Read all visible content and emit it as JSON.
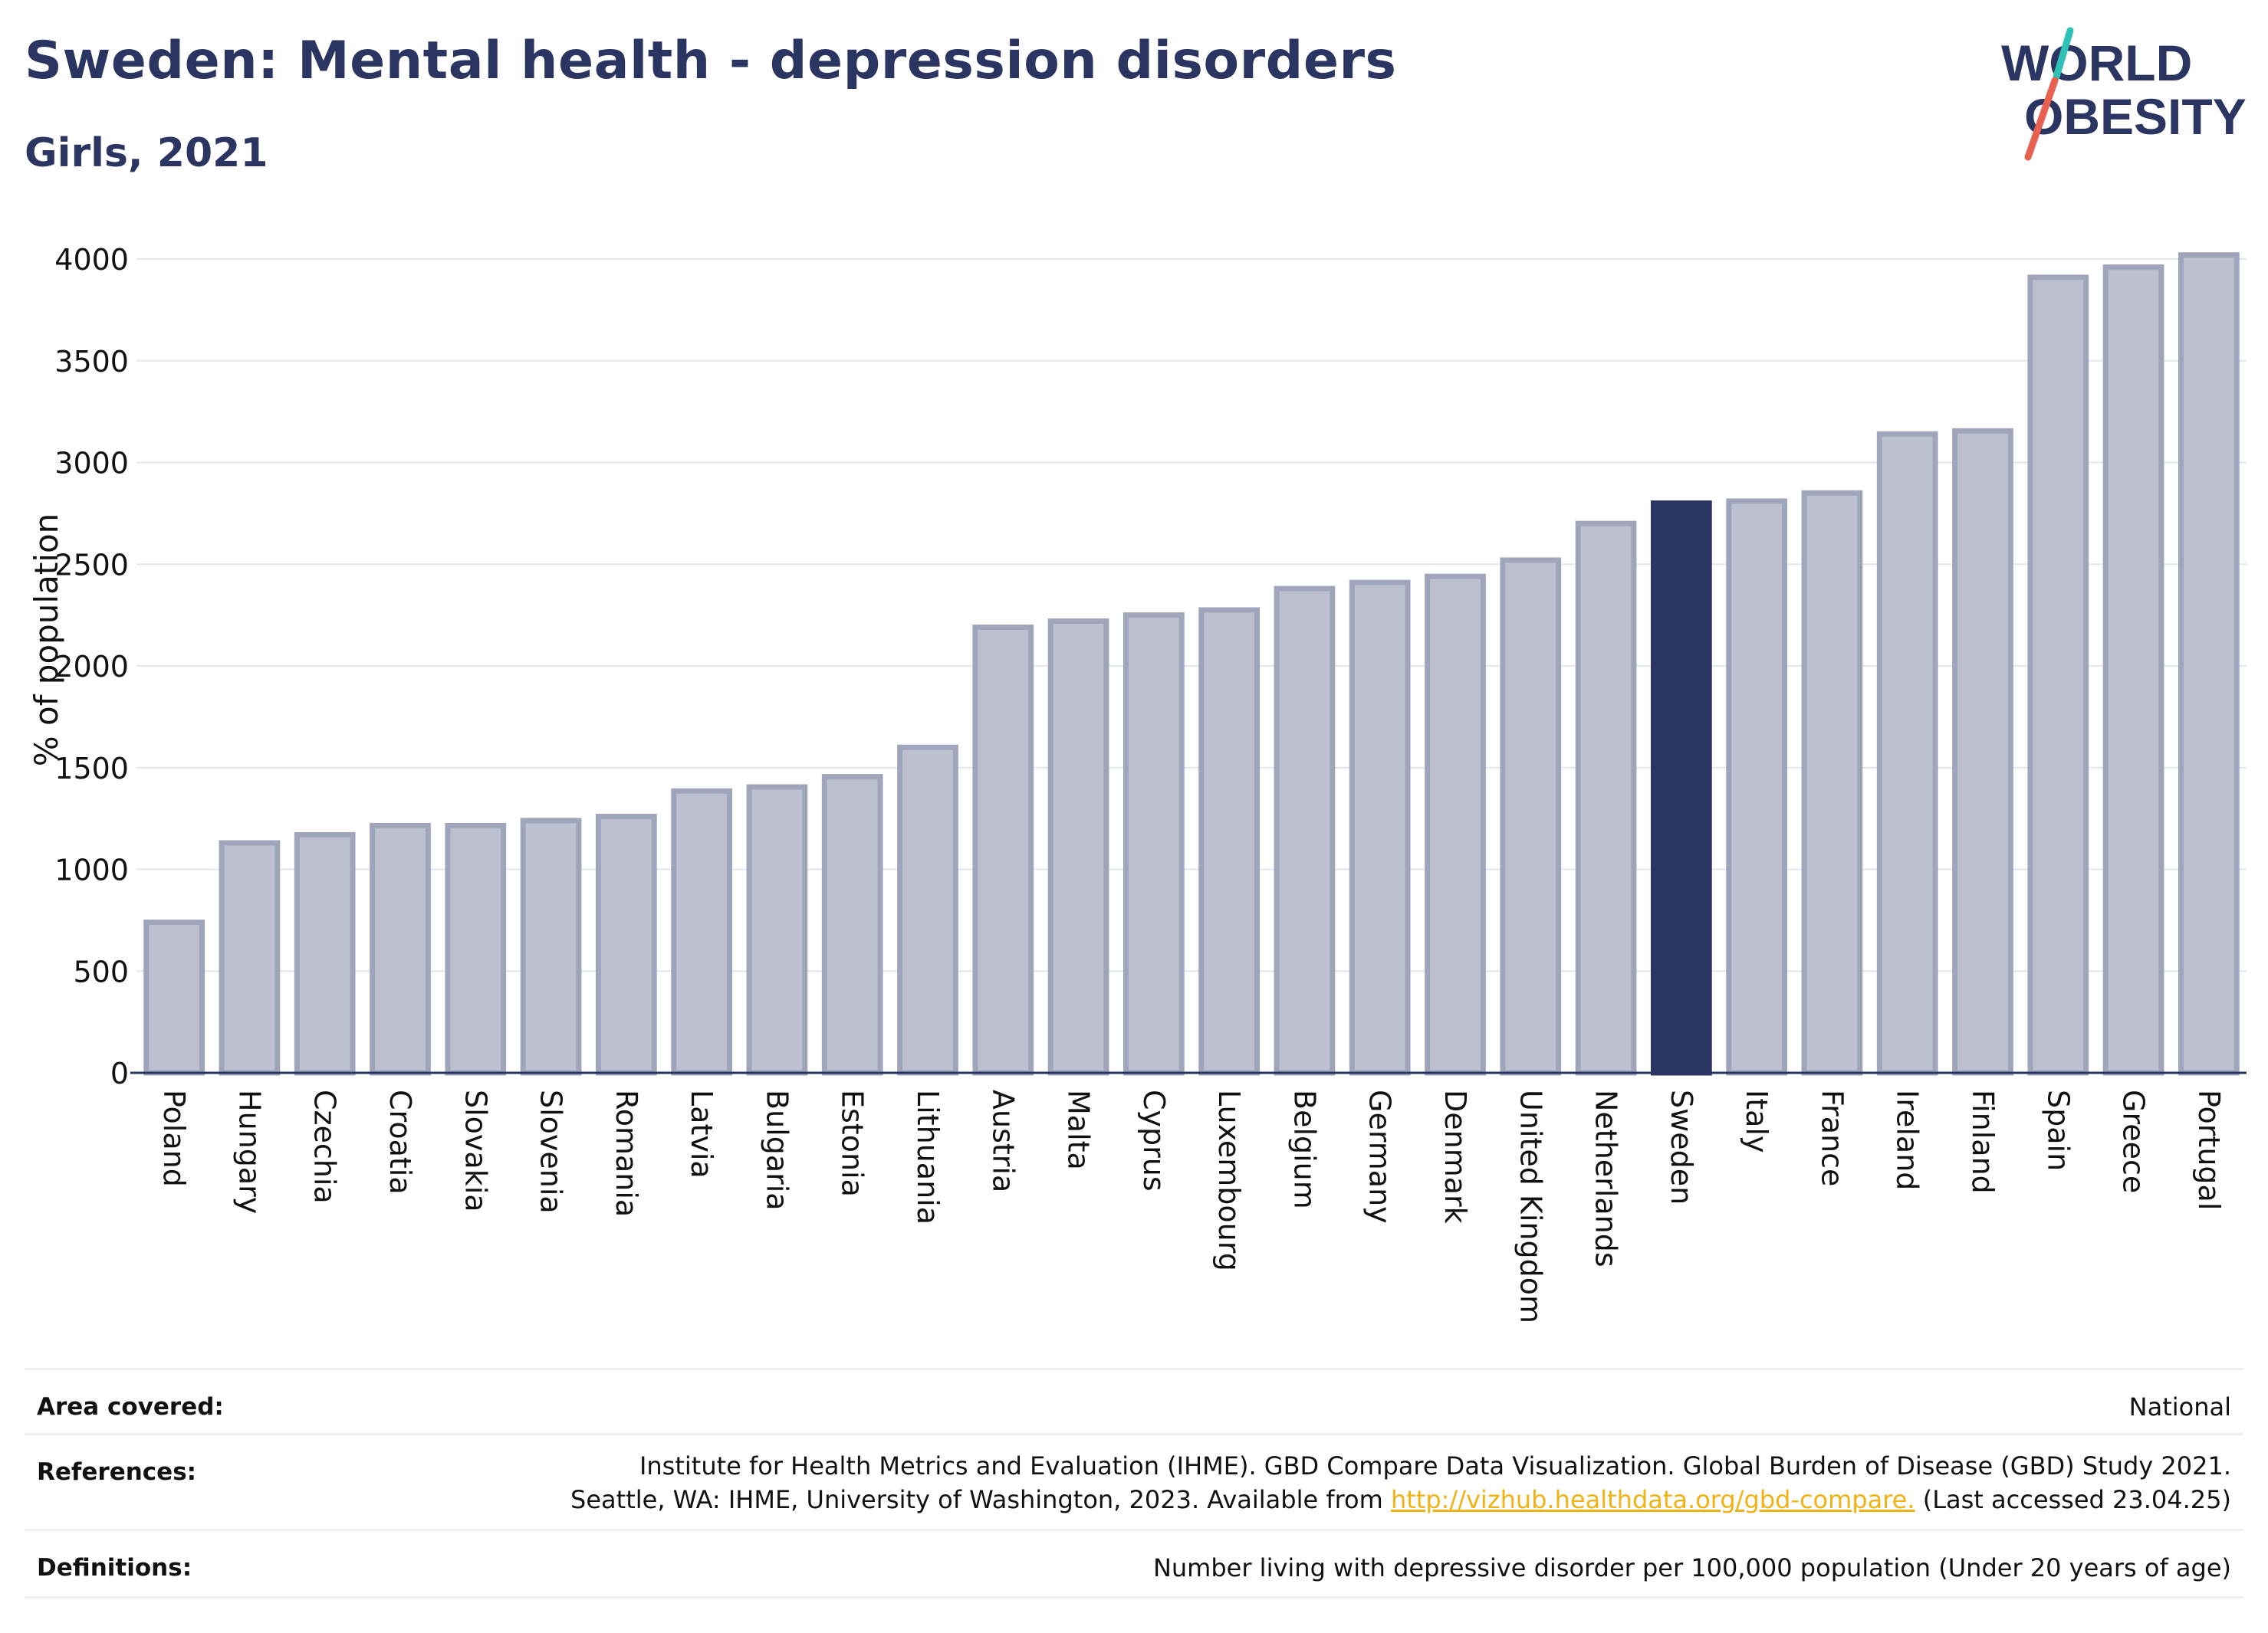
{
  "header": {
    "title": "Sweden: Mental health - depression disorders",
    "subtitle": "Girls, 2021"
  },
  "logo": {
    "line1": "WORLD",
    "line2": "OBESITY"
  },
  "chart_data": {
    "type": "bar",
    "ylabel": "% of population",
    "xlabel": "",
    "ylim": [
      0,
      4200
    ],
    "yticks": [
      0,
      500,
      1000,
      1500,
      2000,
      2500,
      3000,
      3500,
      4000
    ],
    "grid": true,
    "highlight": "Sweden",
    "colors": {
      "bar": "#bcc0cf",
      "bar_border": "#9fa5bb",
      "highlight": "#2a3561",
      "axis": "#2a3561",
      "grid": "#e4e6ee"
    },
    "categories": [
      "Poland",
      "Hungary",
      "Czechia",
      "Croatia",
      "Slovakia",
      "Slovenia",
      "Romania",
      "Latvia",
      "Bulgaria",
      "Estonia",
      "Lithuania",
      "Austria",
      "Malta",
      "Cyprus",
      "Luxembourg",
      "Belgium",
      "Germany",
      "Denmark",
      "United Kingdom",
      "Netherlands",
      "Sweden",
      "Italy",
      "France",
      "Ireland",
      "Finland",
      "Spain",
      "Greece",
      "Portugal"
    ],
    "values": [
      740,
      1130,
      1170,
      1215,
      1215,
      1240,
      1260,
      1385,
      1405,
      1455,
      1600,
      2190,
      2220,
      2250,
      2275,
      2380,
      2410,
      2440,
      2520,
      2700,
      2800,
      2810,
      2850,
      3140,
      3155,
      3910,
      3960,
      4020
    ]
  },
  "info": {
    "area_label": "Area covered:",
    "area_value": "National",
    "references_label": "References:",
    "references_line1": "Institute for Health Metrics and Evaluation (IHME). GBD Compare Data Visualization. Global Burden of Disease (GBD) Study 2021.",
    "references_line2_pre": "Seattle, WA: IHME, University of Washington, 2023. Available from ",
    "references_link": "http://vizhub.healthdata.org/gbd-compare.",
    "references_line2_post": " (Last accessed 23.04.25)",
    "definitions_label": "Definitions:",
    "definitions_value": "Number living with depressive disorder per 100,000 population (Under 20 years of age)"
  }
}
